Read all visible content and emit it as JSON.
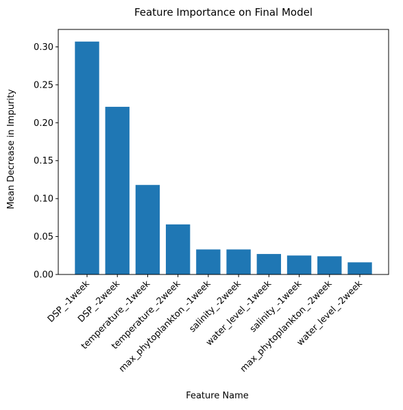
{
  "chart_data": {
    "type": "bar",
    "title": "Feature Importance on Final Model",
    "xlabel": "Feature Name",
    "ylabel": "Mean Decrease in Impurity",
    "categories": [
      "DSP_-1week",
      "DSP_-2week",
      "temperature_-1week",
      "temperature_-2week",
      "max_phytoplankton_-1week",
      "salinity_-2week",
      "water_level_-1week",
      "salinity_-1week",
      "max_phytoplankton_-2week",
      "water_level_-2week"
    ],
    "values": [
      0.307,
      0.221,
      0.118,
      0.066,
      0.033,
      0.033,
      0.027,
      0.025,
      0.024,
      0.016
    ],
    "ylim": [
      0,
      0.323
    ],
    "yticks": [
      0.0,
      0.05,
      0.1,
      0.15,
      0.2,
      0.25,
      0.3
    ],
    "ytick_labels": [
      "0.00",
      "0.05",
      "0.10",
      "0.15",
      "0.20",
      "0.25",
      "0.30"
    ],
    "xtick_rotation_deg": 45,
    "bar_color": "#1f77b4",
    "grid": false,
    "legend": "none"
  }
}
